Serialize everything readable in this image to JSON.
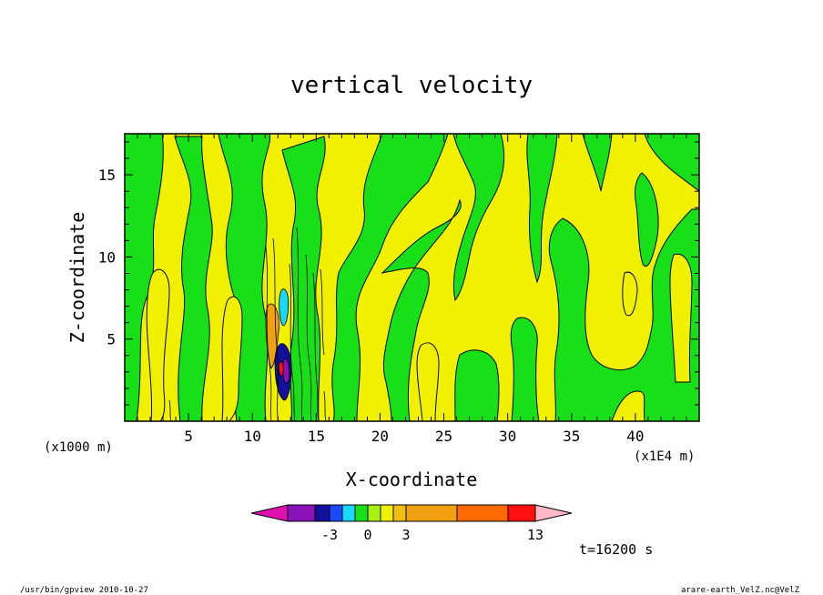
{
  "chart_data": {
    "type": "contour",
    "title": "vertical velocity",
    "xlabel": "X-coordinate",
    "ylabel": "Z-coordinate",
    "x_unit": "(x1000 m)",
    "x_multiplier": "(x1E4 m)",
    "xlim": [
      0,
      45
    ],
    "ylim": [
      0,
      17.5
    ],
    "x_ticks": [
      5,
      10,
      15,
      20,
      25,
      30,
      35,
      40
    ],
    "y_ticks": [
      5,
      10,
      15
    ],
    "x_tick_labels": [
      "5",
      "10",
      "15",
      "20",
      "25",
      "30",
      "35",
      "40"
    ],
    "y_tick_labels": [
      "5",
      "10",
      "15"
    ],
    "colorbar": {
      "colors": [
        "#e010b0",
        "#8a10b8",
        "#10109a",
        "#1848ff",
        "#18d8ff",
        "#18e018",
        "#a8f010",
        "#f0f000",
        "#f0c010",
        "#f0a010",
        "#ff6a00",
        "#ff1010",
        "#ff7878",
        "#ffb8c8"
      ],
      "labels": [
        "-3",
        "0",
        "3",
        "13"
      ]
    },
    "time_label": "t=16200 s",
    "footer_left": "/usr/bin/gpview   2010-10-27",
    "footer_right": "arare-earth_VelZ.nc@VelZ"
  }
}
